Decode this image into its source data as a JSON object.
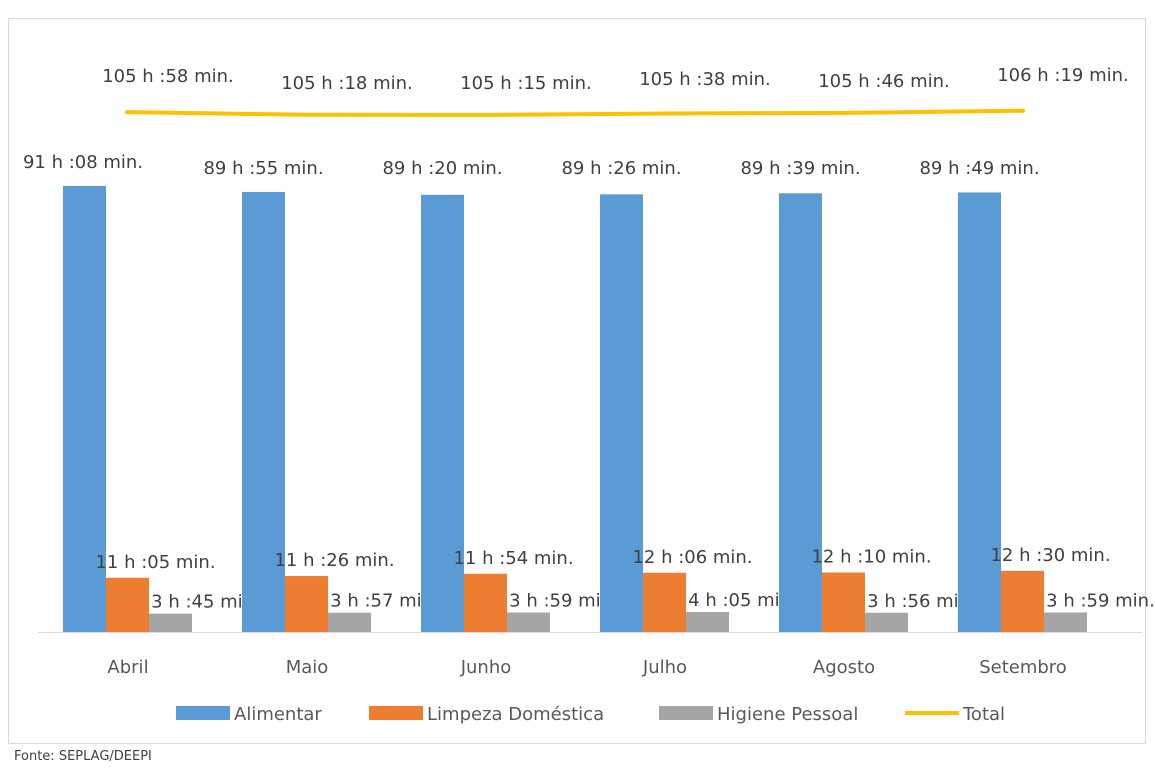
{
  "chart_data": {
    "type": "bar",
    "title": "",
    "xlabel": "",
    "ylabel": "",
    "categories": [
      "Abril",
      "Maio",
      "Junho",
      "Julho",
      "Agosto",
      "Setembro"
    ],
    "series": [
      {
        "name": "Alimentar",
        "kind": "bar",
        "color": "#5B9BD5",
        "values": [
          91.133,
          89.917,
          89.333,
          89.433,
          89.65,
          89.817
        ],
        "labels": [
          "91 h :08 min.",
          "89 h :55 min.",
          "89 h :20 min.",
          "89 h :26 min.",
          "89 h :39 min.",
          "89 h :49 min."
        ]
      },
      {
        "name": "Limpeza Doméstica",
        "kind": "bar",
        "color": "#ED7D31",
        "values": [
          11.083,
          11.433,
          11.9,
          12.1,
          12.167,
          12.5
        ],
        "labels": [
          "11 h :05 min.",
          "11 h :26 min.",
          "11 h :54 min.",
          "12 h :06 min.",
          "12 h :10 min.",
          "12 h :30 min."
        ]
      },
      {
        "name": "Higiene Pessoal",
        "kind": "bar",
        "color": "#A5A5A5",
        "values": [
          3.75,
          3.95,
          3.983,
          4.083,
          3.933,
          3.983
        ],
        "labels": [
          "3 h :45 min.",
          "3 h :57 min.",
          "3 h :59 min.",
          "4 h :05 min.",
          "3 h :56 min.",
          "3 h :59 min."
        ]
      },
      {
        "name": "Total",
        "kind": "line",
        "color": "#FFC000",
        "values": [
          105.967,
          105.3,
          105.25,
          105.633,
          105.767,
          106.317
        ],
        "labels": [
          "105 h :58 min.",
          "105 h :18 min.",
          "105 h :15 min.",
          "105 h :38 min.",
          "105 h :46 min.",
          "106 h :19 min."
        ]
      }
    ],
    "legend_position": "bottom",
    "grid": false
  },
  "source_note": "Fonte: SEPLAG/DEEPI"
}
